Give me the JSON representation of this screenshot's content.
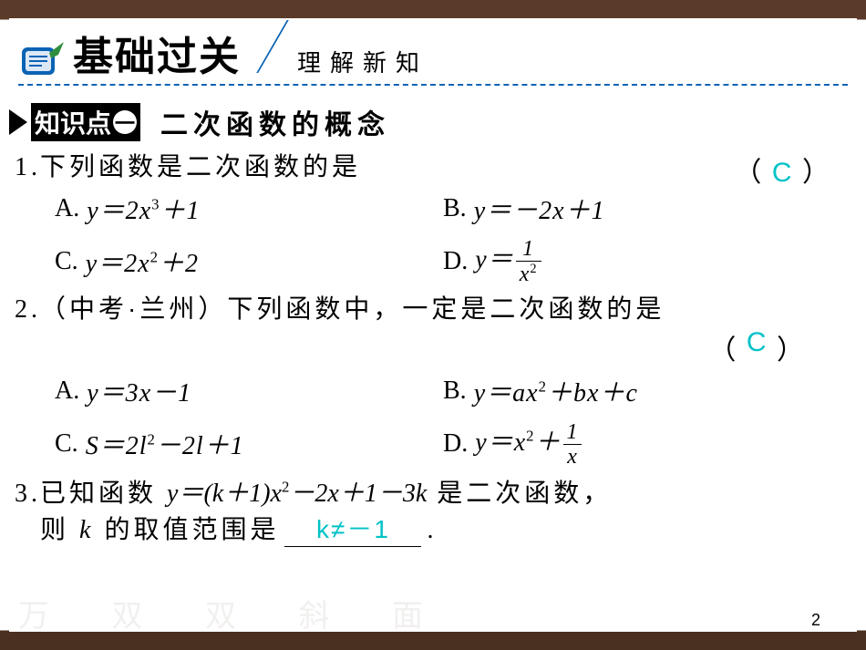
{
  "banner": {
    "title": "基础过关",
    "subtitle": "理解新知",
    "accent_color": "#0b63b4",
    "scroll_icon_color": "#0b63b4",
    "quill_color": "#2f8f3f"
  },
  "knowledge": {
    "badge_label": "知识点",
    "badge_index": "一",
    "title": "二次函数的概念"
  },
  "answer_color": "#00c2c7",
  "questions": [
    {
      "num": "1.",
      "stem": "下列函数是二次函数的是",
      "answer": "C",
      "options": {
        "A": {
          "label": "A.",
          "expr_html": "<i>y</i>＝2<i>x</i><sup>3</sup>＋1"
        },
        "B": {
          "label": "B.",
          "expr_html": "<i>y</i>＝－2<i>x</i>＋1"
        },
        "C": {
          "label": "C.",
          "expr_html": "<i>y</i>＝2<i>x</i><sup>2</sup>＋2"
        },
        "D": {
          "label": "D.",
          "expr_frac": {
            "lhs": "<i>y</i>＝",
            "num": "1",
            "den": "<i>x</i><sup>2</sup>"
          }
        }
      }
    },
    {
      "num": "2.",
      "source": "（中考·兰州）",
      "stem": "下列函数中，一定是二次函数的是",
      "answer": "C",
      "options": {
        "A": {
          "label": "A.",
          "expr_html": "<i>y</i>＝3<i>x</i>－1"
        },
        "B": {
          "label": "B.",
          "expr_html": "<i>y</i>＝<i>a</i><i>x</i><sup>2</sup>＋<i>b</i><i>x</i>＋<i>c</i>"
        },
        "C": {
          "label": "C.",
          "expr_html": "S＝2<i>l</i><sup>2</sup>－2<i>l</i>＋1"
        },
        "D": {
          "label": "D.",
          "expr_mixed": {
            "lhs": "<i>y</i>＝<i>x</i><sup>2</sup>＋",
            "num": "1",
            "den": "<i>x</i>"
          }
        }
      }
    },
    {
      "num": "3.",
      "stem_pre": "已知函数 ",
      "stem_math": "<i>y</i>＝(<i>k</i>＋1)<i>x</i><sup>2</sup>－2<i>x</i>＋1－3<i>k</i>",
      "stem_post1": " 是二次函数，",
      "stem_line2_pre": "则 ",
      "stem_k": "<i>k</i>",
      "stem_line2_post": " 的取值范围是",
      "blank_answer": "k≠－1",
      "period": "."
    }
  ],
  "page_number": "2"
}
